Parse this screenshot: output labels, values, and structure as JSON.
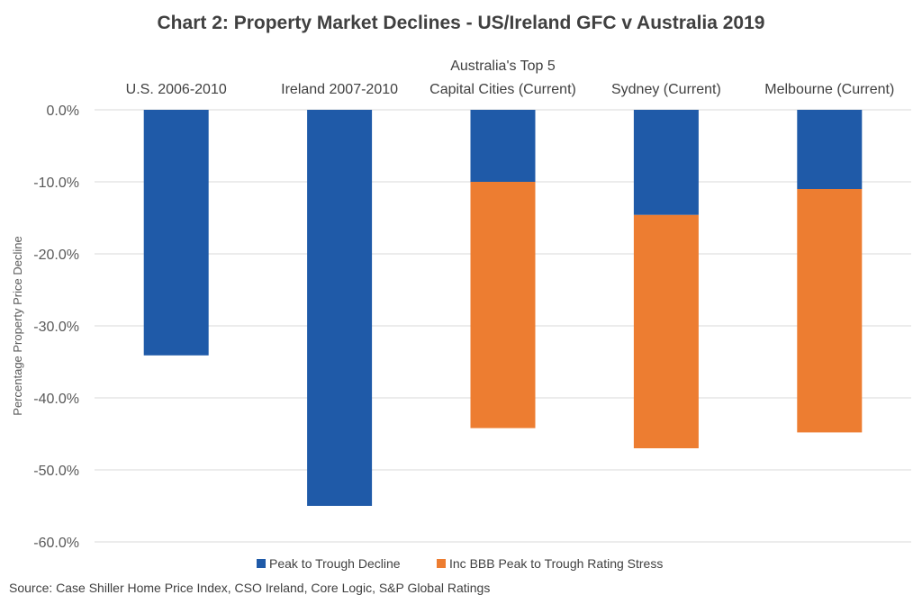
{
  "chart_data": {
    "type": "bar",
    "stacked": true,
    "title": "Chart 2: Property Market Declines - US/Ireland GFC v Australia 2019",
    "ylabel": "Percentage Property Price Decline",
    "xlabel": "",
    "ylim": [
      -60,
      0
    ],
    "yticks": [
      "0.0%",
      "-10.0%",
      "-20.0%",
      "-30.0%",
      "-40.0%",
      "-50.0%",
      "-60.0%"
    ],
    "ytick_values": [
      0,
      -10,
      -20,
      -30,
      -40,
      -50,
      -60
    ],
    "grid": true,
    "categories": [
      [
        "U.S. 2006-2010"
      ],
      [
        "Ireland 2007-2010"
      ],
      [
        "Australia's Top 5",
        "Capital Cities (Current)"
      ],
      [
        "Sydney (Current)"
      ],
      [
        "Melbourne (Current)"
      ]
    ],
    "series": [
      {
        "name": "Peak to Trough Decline",
        "color": "#1f5aa8",
        "values": [
          -34.1,
          -55.0,
          -10.0,
          -14.6,
          -11.0
        ]
      },
      {
        "name": "Inc BBB Peak to Trough Rating Stress",
        "color": "#ed7d31",
        "values": [
          0,
          0,
          -34.2,
          -32.4,
          -33.8
        ]
      }
    ],
    "legend_position": "bottom",
    "source": "Source: Case Shiller Home Price Index, CSO Ireland, Core Logic, S&P Global Ratings"
  }
}
